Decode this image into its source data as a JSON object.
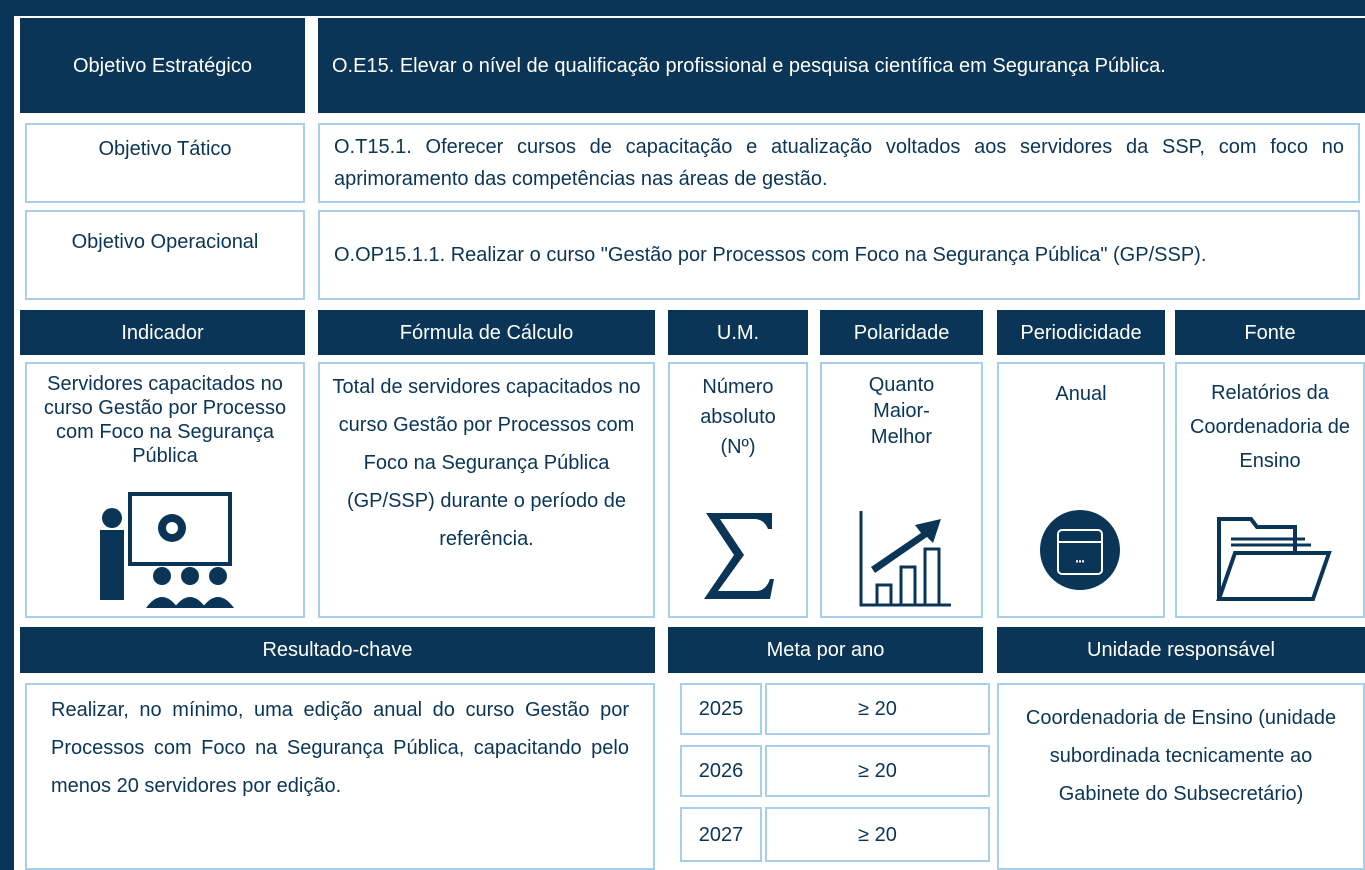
{
  "objectives": [
    {
      "label": "Objetivo Estratégico",
      "text": "O.E15. Elevar o nível de qualificação profissional e pesquisa científica em Segurança Pública."
    },
    {
      "label": "Objetivo Tático",
      "text": "O.T15.1. Oferecer cursos de capacitação e atualização voltados aos servidores da SSP, com foco no aprimoramento das competências nas áreas de gestão."
    },
    {
      "label": "Objetivo Operacional",
      "text": "O.OP15.1.1. Realizar o curso \"Gestão por Processos com Foco na Segurança Pública\" (GP/SSP)."
    }
  ],
  "indicator_table": {
    "headers": [
      "Indicador",
      "Fórmula de Cálculo",
      "U.M.",
      "Polaridade",
      "Periodicidade",
      "Fonte"
    ],
    "values": [
      "Servidores capacitados no curso Gestão por Processo com Foco na Segurança Pública",
      "Total de servidores capacitados no curso Gestão por Processos com Foco na Segurança Pública (GP/SSP) durante o período de referência.",
      "Número absoluto (Nº)",
      "Quanto Maior-Melhor",
      "Anual",
      "Relatórios da Coordenadoria de Ensino"
    ]
  },
  "key_result": {
    "header": "Resultado-chave",
    "text": "Realizar, no mínimo, uma edição anual do curso Gestão por Processos com Foco na Segurança Pública, capacitando pelo menos 20 servidores por edição."
  },
  "targets": {
    "header": "Meta por ano",
    "rows": [
      [
        "2025",
        "≥ 20"
      ],
      [
        "2026",
        "≥ 20"
      ],
      [
        "2027",
        "≥ 20"
      ]
    ]
  },
  "responsible_unit": {
    "header": "Unidade responsável",
    "text": "Coordenadoria de Ensino (unidade subordinada tecnicamente ao Gabinete do Subsecretário)"
  }
}
